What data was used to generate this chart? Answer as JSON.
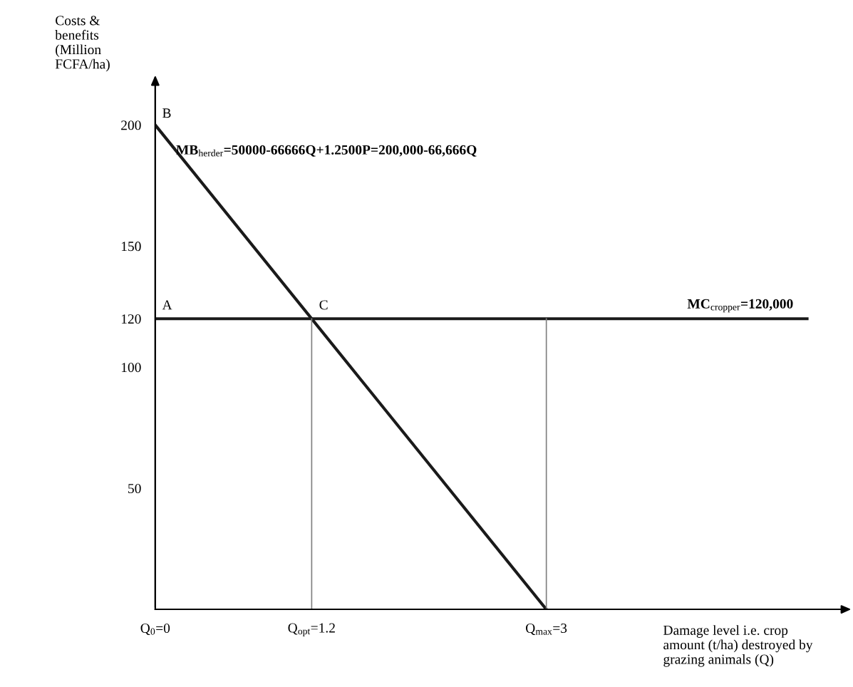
{
  "chart_data": {
    "type": "line",
    "xlabel": "Damage level i.e. crop\namount (t/ha) destroyed by\ngrazing animals (Q)",
    "ylabel": "Costs &\nbenefits\n(Million\nFCFA/ha)",
    "series": [
      {
        "x": [
          0,
          3
        ],
        "values": [
          200,
          0
        ],
        "color": "#1a1a1a"
      },
      {
        "x": [
          0,
          5
        ],
        "values": [
          120,
          120
        ],
        "color": "#1a1a1a"
      },
      {
        "x": [
          1.2,
          1.2
        ],
        "values": [
          0,
          120
        ],
        "color": "#808080"
      },
      {
        "x": [
          3,
          3
        ],
        "values": [
          0,
          120
        ],
        "color": "#808080"
      }
    ],
    "xlim": [
      0,
      5.3
    ],
    "ylim": [
      0,
      217
    ],
    "xticks": [
      {
        "value": 0,
        "label": "Q$_{0}$=0"
      },
      {
        "value": 1.2,
        "label": "Q$_{opt}$=1.2"
      },
      {
        "value": 3,
        "label": "Q$_{max}$=3"
      }
    ],
    "yticks": [
      50,
      100,
      120,
      150,
      200
    ],
    "grid": false,
    "marker": "none",
    "line_style": "solid",
    "annotations": [
      "A",
      "B",
      "C",
      "MB$_{herder}$=50000-66666Q+1.2500P=200,000-66,666Q",
      "MC$_{cropper}$=120,000"
    ]
  }
}
